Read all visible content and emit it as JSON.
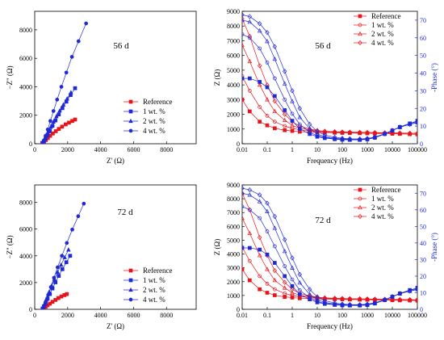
{
  "chart_data": [
    {
      "type": "scatter",
      "panel": "nyquist",
      "annotation": "56 d",
      "xlabel": "Z' (Ω)",
      "ylabel": "−Z\" (Ω)",
      "xlim": [
        0,
        9800
      ],
      "ylim": [
        0,
        9300
      ],
      "xticks": [
        0,
        2000,
        4000,
        6000,
        8000
      ],
      "yticks": [
        0,
        2000,
        4000,
        6000,
        8000
      ],
      "legend_position": "bottom-right",
      "series": [
        {
          "name": "Reference",
          "color": "#e8141c",
          "marker": "square",
          "filled": true,
          "x": [
            460,
            560,
            680,
            800,
            940,
            1100,
            1280,
            1460,
            1660,
            1880,
            2080,
            2280,
            2450
          ],
          "y": [
            60,
            140,
            260,
            400,
            560,
            720,
            880,
            1040,
            1200,
            1360,
            1480,
            1600,
            1700
          ]
        },
        {
          "name": "1 wt. %",
          "color": "#1f2ad6",
          "marker": "square",
          "filled": true,
          "x": [
            470,
            560,
            660,
            780,
            920,
            1080,
            1260,
            1460,
            1680,
            1920,
            2180,
            2450
          ],
          "y": [
            60,
            180,
            360,
            620,
            900,
            1260,
            1640,
            2060,
            2500,
            2960,
            3420,
            3900
          ]
        },
        {
          "name": "2 wt. %",
          "color": "#1f2ad6",
          "marker": "triangle",
          "filled": true,
          "x": [
            470,
            540,
            620,
            720,
            840,
            980,
            1140,
            1320,
            1520,
            1740,
            1970,
            2200
          ],
          "y": [
            60,
            160,
            340,
            580,
            860,
            1180,
            1540,
            1920,
            2320,
            2740,
            3160,
            3600
          ]
        },
        {
          "name": "4 wt. %",
          "color": "#1f2ad6",
          "marker": "circle",
          "filled": true,
          "x": [
            480,
            560,
            660,
            790,
            950,
            1140,
            1360,
            1620,
            1920,
            2260,
            2660,
            3120
          ],
          "y": [
            60,
            240,
            560,
            1000,
            1600,
            2300,
            3100,
            4000,
            5000,
            6100,
            7200,
            8450
          ]
        }
      ]
    },
    {
      "type": "line",
      "panel": "bode",
      "annotation": "56 d",
      "xlabel": "Frequency (Hz)",
      "ylabel": "Z (Ω)",
      "ylabel_right": "-Phase (°)",
      "xscale": "log",
      "xlim": [
        0.01,
        100000
      ],
      "ylim": [
        0,
        9000
      ],
      "ylim_right": [
        0,
        75
      ],
      "xticks": [
        0.01,
        0.1,
        1,
        10,
        100,
        1000,
        10000,
        100000
      ],
      "xtick_labels": [
        "0.01",
        "0.1",
        "1",
        "10",
        "100",
        "1000",
        "10000",
        "100000"
      ],
      "yticks": [
        0,
        1000,
        2000,
        3000,
        4000,
        5000,
        6000,
        7000,
        8000,
        9000
      ],
      "yticks_right": [
        0,
        10,
        20,
        30,
        40,
        50,
        60,
        70
      ],
      "legend_position": "top-right",
      "legend": [
        {
          "name": "Reference",
          "color": "#e8141c",
          "marker": "square",
          "filled": true
        },
        {
          "name": "1 wt. %",
          "color": "#e8141c",
          "marker": "circle",
          "filled": false
        },
        {
          "name": "2 wt. %",
          "color": "#e8141c",
          "marker": "triangle",
          "filled": false
        },
        {
          "name": "4 wt. %",
          "color": "#e8141c",
          "marker": "diamond",
          "filled": false
        }
      ],
      "x": [
        0.01,
        0.02,
        0.05,
        0.1,
        0.2,
        0.5,
        1,
        2,
        5,
        10,
        20,
        50,
        100,
        200,
        500,
        1000,
        2000,
        5000,
        10000,
        20000,
        50000,
        100000
      ],
      "impedance_series": [
        {
          "name": "Reference",
          "color": "#e8141c",
          "marker": "square",
          "filled": true,
          "y": [
            3000,
            2200,
            1500,
            1250,
            1050,
            920,
            870,
            820,
            790,
            770,
            760,
            750,
            740,
            730,
            720,
            710,
            700,
            690,
            680,
            670,
            650,
            640
          ]
        },
        {
          "name": "1 wt. %",
          "color": "#e8141c",
          "marker": "circle",
          "filled": false,
          "y": [
            4600,
            3600,
            2500,
            1900,
            1500,
            1200,
            1050,
            950,
            880,
            840,
            810,
            790,
            780,
            770,
            760,
            750,
            740,
            730,
            720,
            710,
            700,
            700
          ]
        },
        {
          "name": "2 wt. %",
          "color": "#e8141c",
          "marker": "triangle",
          "filled": false,
          "y": [
            6700,
            5600,
            4000,
            3000,
            2200,
            1600,
            1250,
            1050,
            950,
            880,
            840,
            810,
            790,
            780,
            770,
            760,
            750,
            740,
            730,
            720,
            710,
            700
          ]
        },
        {
          "name": "4 wt. %",
          "color": "#e8141c",
          "marker": "diamond",
          "filled": false,
          "y": [
            8500,
            7300,
            5300,
            4000,
            2900,
            2000,
            1500,
            1200,
            1000,
            900,
            850,
            820,
            800,
            790,
            780,
            770,
            760,
            750,
            740,
            730,
            720,
            710
          ]
        }
      ],
      "phase_series": [
        {
          "name": "Reference",
          "color": "#1f2ad6",
          "marker": "square",
          "filled": true,
          "y": [
            37,
            37,
            35,
            32,
            27,
            19,
            13,
            8.5,
            5.5,
            4,
            3.2,
            2.6,
            2.3,
            2.2,
            2.2,
            2.5,
            3.4,
            5.5,
            7.5,
            9.5,
            11.5,
            13
          ]
        },
        {
          "name": "1 wt. %",
          "color": "#1f2ad6",
          "marker": "circle",
          "filled": false,
          "y": [
            62,
            60,
            54,
            46,
            37,
            25,
            17,
            11,
            6.5,
            4.5,
            3.5,
            2.8,
            2.5,
            2.3,
            2.3,
            2.6,
            3.5,
            5.5,
            7.5,
            9.5,
            11.5,
            12.5
          ]
        },
        {
          "name": "2 wt. %",
          "color": "#1f2ad6",
          "marker": "triangle",
          "filled": false,
          "y": [
            70,
            69,
            64,
            58,
            48,
            34,
            24,
            15,
            8.5,
            5.5,
            4,
            3.1,
            2.7,
            2.5,
            2.5,
            2.8,
            3.7,
            5.6,
            7.5,
            9.3,
            11,
            12
          ]
        },
        {
          "name": "4 wt. %",
          "color": "#1f2ad6",
          "marker": "diamond",
          "filled": false,
          "y": [
            73,
            72,
            68,
            63,
            55,
            41,
            30,
            20,
            11,
            7,
            5,
            3.7,
            3.1,
            2.8,
            2.7,
            3,
            3.8,
            5.7,
            7.6,
            9.4,
            11,
            12
          ]
        }
      ]
    },
    {
      "type": "scatter",
      "panel": "nyquist",
      "annotation": "72 d",
      "xlabel": "Z' (Ω)",
      "ylabel": "−Z\" (Ω)",
      "xlim": [
        0,
        9800
      ],
      "ylim": [
        0,
        9300
      ],
      "xticks": [
        0,
        2000,
        4000,
        6000,
        8000
      ],
      "yticks": [
        0,
        2000,
        4000,
        6000,
        8000
      ],
      "legend_position": "bottom-right",
      "series": [
        {
          "name": "Reference",
          "color": "#e8141c",
          "marker": "square",
          "filled": true,
          "x": [
            480,
            560,
            660,
            780,
            920,
            1080,
            1260,
            1440,
            1620,
            1800,
            1950
          ],
          "y": [
            40,
            100,
            190,
            300,
            420,
            560,
            700,
            840,
            960,
            1060,
            1140
          ]
        },
        {
          "name": "1 wt. %",
          "color": "#1f2ad6",
          "marker": "square",
          "filled": true,
          "x": [
            480,
            560,
            660,
            780,
            920,
            1080,
            1260,
            1460,
            1680,
            1920,
            2150
          ],
          "y": [
            60,
            220,
            460,
            780,
            1140,
            1560,
            2020,
            2500,
            3000,
            3520,
            4000
          ]
        },
        {
          "name": "2 wt. %",
          "color": "#1f2ad6",
          "marker": "triangle",
          "filled": true,
          "x": [
            480,
            550,
            640,
            750,
            880,
            1030,
            1200,
            1390,
            1600,
            1820,
            2050
          ],
          "y": [
            60,
            240,
            520,
            880,
            1300,
            1760,
            2260,
            2780,
            3320,
            3880,
            4450
          ]
        },
        {
          "name": "4 wt. %",
          "color": "#1f2ad6",
          "marker": "circle",
          "filled": true,
          "x": [
            500,
            580,
            690,
            820,
            980,
            1170,
            1390,
            1650,
            1950,
            2280,
            2640,
            2980
          ],
          "y": [
            60,
            280,
            620,
            1080,
            1660,
            2360,
            3140,
            4000,
            4960,
            5960,
            6960,
            7900
          ]
        }
      ]
    },
    {
      "type": "line",
      "panel": "bode",
      "annotation": "72 d",
      "xlabel": "Frequency (Hz)",
      "ylabel": "Z (Ω)",
      "ylabel_right": "-Phase (°)",
      "xscale": "log",
      "xlim": [
        0.01,
        100000
      ],
      "ylim": [
        0,
        9000
      ],
      "ylim_right": [
        0,
        75
      ],
      "xticks": [
        0.01,
        0.1,
        1,
        10,
        100,
        1000,
        10000,
        100000
      ],
      "xtick_labels": [
        "0.01",
        "0.1",
        "1",
        "10",
        "100",
        "1000",
        "10000",
        "100000"
      ],
      "yticks": [
        0,
        1000,
        2000,
        3000,
        4000,
        5000,
        6000,
        7000,
        8000,
        9000
      ],
      "yticks_right": [
        0,
        10,
        20,
        30,
        40,
        50,
        60,
        70
      ],
      "legend_position": "top-right",
      "legend": [
        {
          "name": "Reference",
          "color": "#e8141c",
          "marker": "square",
          "filled": true
        },
        {
          "name": "1 wt. %",
          "color": "#e8141c",
          "marker": "circle",
          "filled": false
        },
        {
          "name": "2 wt. %",
          "color": "#e8141c",
          "marker": "triangle",
          "filled": false
        },
        {
          "name": "4 wt. %",
          "color": "#e8141c",
          "marker": "diamond",
          "filled": false
        }
      ],
      "x": [
        0.01,
        0.02,
        0.05,
        0.1,
        0.2,
        0.5,
        1,
        2,
        5,
        10,
        20,
        50,
        100,
        200,
        500,
        1000,
        2000,
        5000,
        10000,
        20000,
        50000,
        100000
      ],
      "impedance_series": [
        {
          "name": "Reference",
          "color": "#e8141c",
          "marker": "square",
          "filled": true,
          "y": [
            2900,
            2100,
            1450,
            1200,
            1020,
            900,
            850,
            800,
            770,
            750,
            740,
            730,
            720,
            710,
            700,
            690,
            680,
            670,
            660,
            650,
            640,
            630
          ]
        },
        {
          "name": "1 wt. %",
          "color": "#e8141c",
          "marker": "circle",
          "filled": false,
          "y": [
            4500,
            3500,
            2400,
            1850,
            1450,
            1150,
            1000,
            920,
            860,
            820,
            790,
            770,
            760,
            750,
            740,
            730,
            720,
            710,
            700,
            690,
            680,
            680
          ]
        },
        {
          "name": "2 wt. %",
          "color": "#e8141c",
          "marker": "triangle",
          "filled": false,
          "y": [
            6600,
            5500,
            3900,
            2900,
            2100,
            1550,
            1200,
            1020,
            920,
            860,
            820,
            790,
            770,
            760,
            750,
            740,
            730,
            720,
            710,
            700,
            690,
            680
          ]
        },
        {
          "name": "4 wt. %",
          "color": "#e8141c",
          "marker": "diamond",
          "filled": false,
          "y": [
            8400,
            7200,
            5200,
            3900,
            2800,
            1950,
            1450,
            1150,
            980,
            880,
            830,
            800,
            780,
            770,
            760,
            750,
            740,
            730,
            720,
            710,
            700,
            690
          ]
        }
      ],
      "phase_series": [
        {
          "name": "Reference",
          "color": "#1f2ad6",
          "marker": "square",
          "filled": true,
          "y": [
            37,
            37,
            36,
            33,
            28,
            20,
            14,
            9,
            6,
            4.2,
            3.3,
            2.7,
            2.4,
            2.3,
            2.3,
            2.6,
            3.5,
            5.6,
            7.6,
            9.6,
            11.6,
            13
          ]
        },
        {
          "name": "1 wt. %",
          "color": "#1f2ad6",
          "marker": "circle",
          "filled": false,
          "y": [
            62,
            60,
            55,
            47,
            38,
            26,
            18,
            11.5,
            7,
            4.7,
            3.6,
            2.9,
            2.6,
            2.4,
            2.4,
            2.7,
            3.6,
            5.6,
            7.6,
            9.6,
            11.5,
            12.5
          ]
        },
        {
          "name": "2 wt. %",
          "color": "#1f2ad6",
          "marker": "triangle",
          "filled": false,
          "y": [
            70,
            69,
            65,
            59,
            49,
            35,
            25,
            16,
            9,
            5.8,
            4.2,
            3.2,
            2.8,
            2.6,
            2.6,
            2.9,
            3.8,
            5.7,
            7.6,
            9.4,
            11,
            12
          ]
        },
        {
          "name": "4 wt. %",
          "color": "#1f2ad6",
          "marker": "diamond",
          "filled": false,
          "y": [
            73,
            72,
            69,
            64,
            56,
            42,
            31,
            21,
            12,
            7.5,
            5.2,
            3.8,
            3.2,
            2.9,
            2.8,
            3.1,
            3.9,
            5.8,
            7.7,
            9.5,
            11,
            12
          ]
        }
      ]
    }
  ]
}
